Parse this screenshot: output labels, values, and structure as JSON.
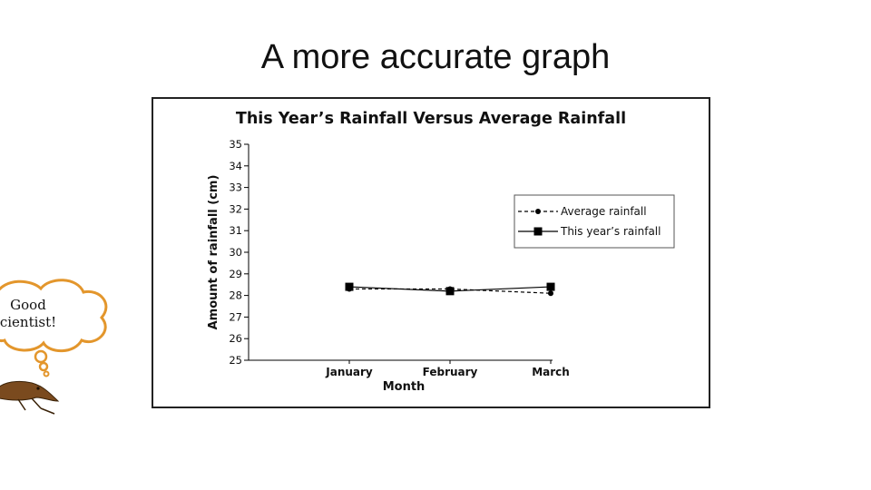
{
  "slide": {
    "title": "A more accurate graph",
    "bubble_line1": "Good",
    "bubble_line2": "cientist!"
  },
  "chart_data": {
    "type": "line",
    "title": "This Year’s Rainfall Versus Average Rainfall",
    "xlabel": "Month",
    "ylabel": "Amount of rainfall (cm)",
    "categories": [
      "January",
      "February",
      "March"
    ],
    "ylim": [
      25,
      35
    ],
    "yticks": [
      25,
      26,
      27,
      28,
      29,
      30,
      31,
      32,
      33,
      34,
      35
    ],
    "grid": false,
    "legend_position": "right",
    "series": [
      {
        "name": "Average rainfall",
        "values": [
          28.3,
          28.3,
          28.1
        ],
        "line_style": "dashed",
        "marker": "circle",
        "color": "#000000"
      },
      {
        "name": "This year’s rainfall",
        "values": [
          28.4,
          28.2,
          28.4
        ],
        "line_style": "solid",
        "marker": "square",
        "color": "#000000"
      }
    ]
  },
  "colors": {
    "bubble_stroke": "#e3962c",
    "creature": "#7a4a1e"
  }
}
